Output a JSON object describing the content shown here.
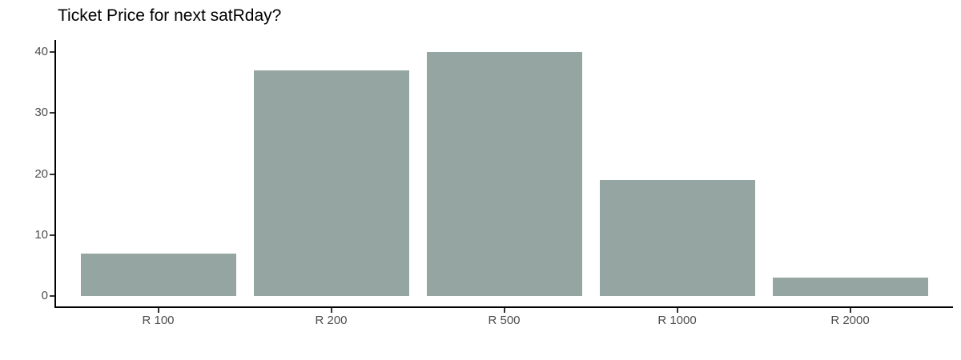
{
  "title": "Ticket Price for next satRday?",
  "chart_data": {
    "type": "bar",
    "title": "Ticket Price for next satRday?",
    "categories": [
      "R 100",
      "R 200",
      "R 500",
      "R 1000",
      "R 2000"
    ],
    "values": [
      7,
      37,
      40,
      19,
      3
    ],
    "xlabel": "",
    "ylabel": "",
    "ylim": [
      0,
      40
    ],
    "yticks": [
      0,
      10,
      20,
      30,
      40
    ],
    "grid": "off",
    "legend": "none",
    "colors": {
      "bar": "#95a5a2",
      "axis_line": "#000000",
      "tick_mark": "#333333",
      "tick_label": "#4d4d4d",
      "title": "#000000",
      "background": "#ffffff"
    }
  }
}
